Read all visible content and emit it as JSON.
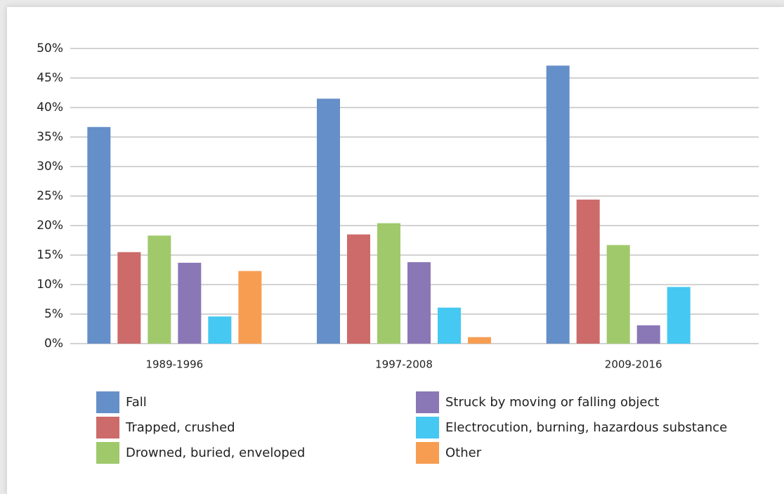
{
  "chart_data": {
    "type": "bar",
    "categories": [
      "1989-1996",
      "1997-2008",
      "2009-2016"
    ],
    "series": [
      {
        "name": "Fall",
        "color": "#658fc8",
        "values": [
          36.7,
          41.5,
          47.1
        ]
      },
      {
        "name": "Trapped, crushed",
        "color": "#cc6b6a",
        "values": [
          15.5,
          18.5,
          24.4
        ]
      },
      {
        "name": "Drowned, buried, enveloped",
        "color": "#a0c96c",
        "values": [
          18.3,
          20.4,
          16.7
        ]
      },
      {
        "name": "Struck by moving or falling object",
        "color": "#8a77b6",
        "values": [
          13.7,
          13.8,
          3.1
        ]
      },
      {
        "name": "Electrocution, burning, hazardous substance",
        "color": "#45c8f1",
        "values": [
          4.6,
          6.1,
          9.6
        ]
      },
      {
        "name": "Other",
        "color": "#f79d52",
        "values": [
          12.3,
          1.1,
          0
        ]
      }
    ],
    "ylim": [
      0,
      50
    ],
    "yticks": [
      {
        "value": 0,
        "label": "0%"
      },
      {
        "value": 5,
        "label": "5%"
      },
      {
        "value": 10,
        "label": "10%"
      },
      {
        "value": 15,
        "label": "15%"
      },
      {
        "value": 20,
        "label": "20%"
      },
      {
        "value": 25,
        "label": "25%"
      },
      {
        "value": 30,
        "label": "30%"
      },
      {
        "value": 35,
        "label": "35%"
      },
      {
        "value": 40,
        "label": "40%"
      },
      {
        "value": 45,
        "label": "45%"
      },
      {
        "value": 50,
        "label": "50%"
      }
    ],
    "grid": true,
    "legend": "bottom"
  }
}
